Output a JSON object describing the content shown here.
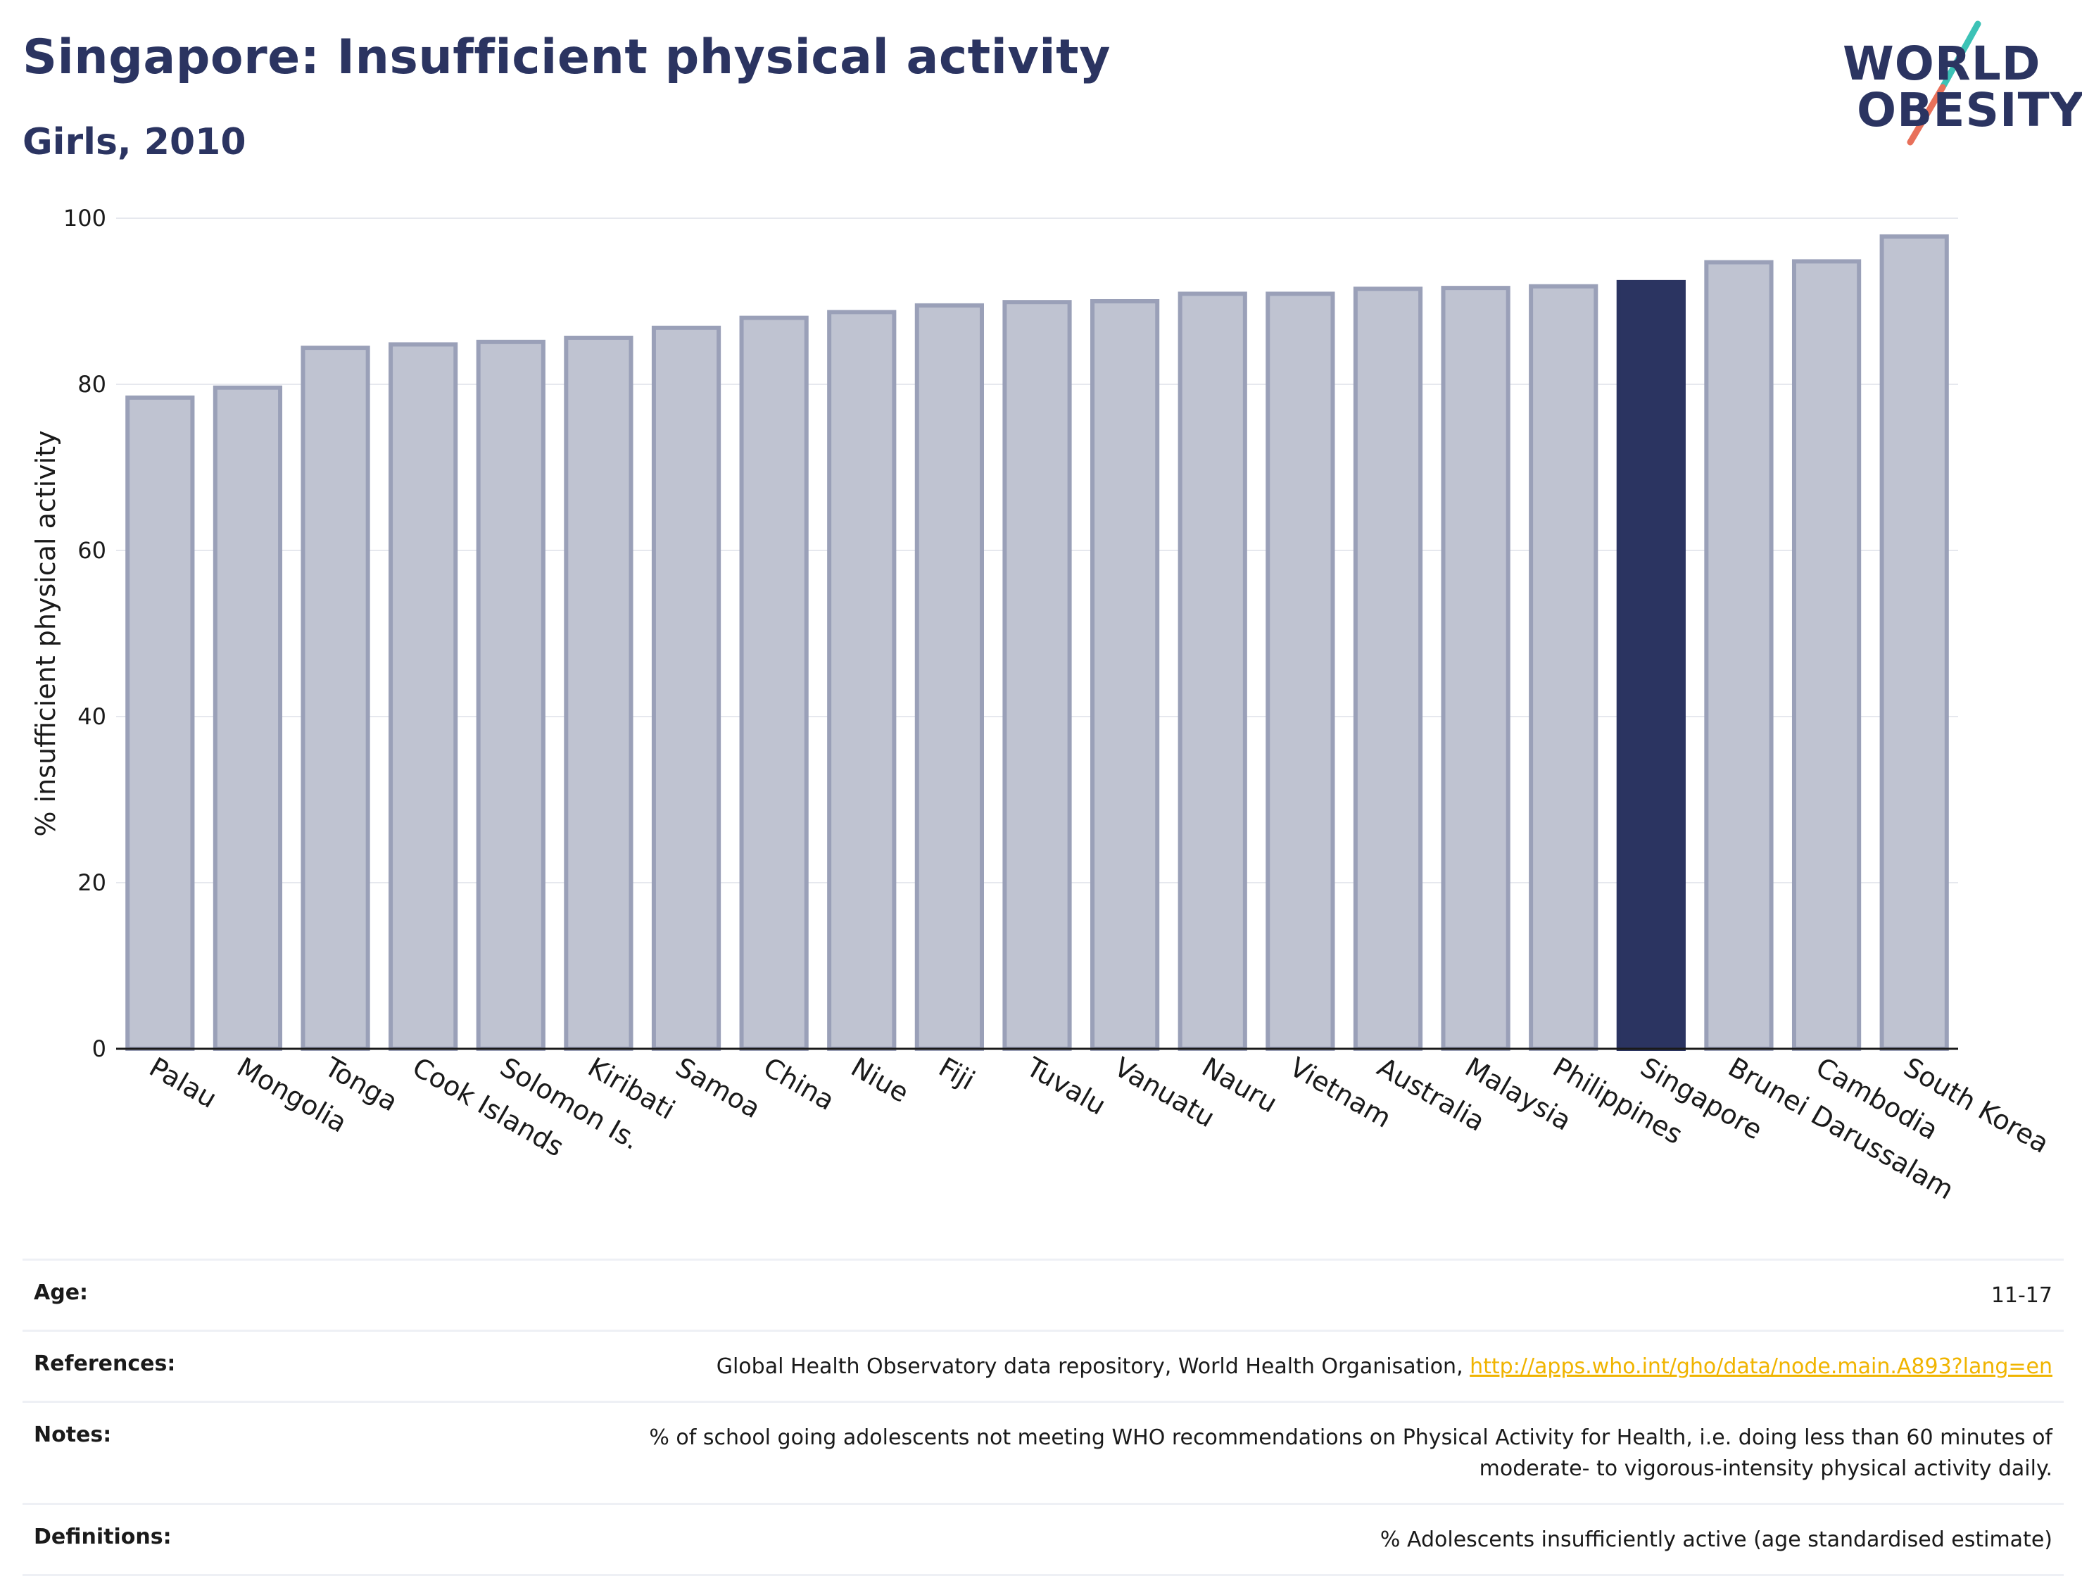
{
  "header": {
    "title": "Singapore: Insufficient physical activity",
    "subtitle": "Girls, 2010"
  },
  "logo": {
    "line1": "WORLD",
    "line2": "OBESITY",
    "colors": {
      "text": "#2b3461",
      "slash_top": "#3cc2b6",
      "slash_bottom": "#e8705a"
    }
  },
  "chart_data": {
    "type": "bar",
    "title": "Singapore: Insufficient physical activity",
    "subtitle": "Girls, 2010",
    "xlabel": "",
    "ylabel": "% insufficient physical activity",
    "ylim": [
      0,
      100
    ],
    "yticks": [
      0,
      20,
      40,
      60,
      80,
      100
    ],
    "grid": true,
    "legend": "none",
    "highlight": "Singapore",
    "colors": {
      "bar": "#bfc3d1",
      "bar_edge": "#9aa0b8",
      "highlight": "#2b3461",
      "grid": "#e6e8ee",
      "axis": "#1a1a1a"
    },
    "categories": [
      "Palau",
      "Mongolia",
      "Tonga",
      "Cook Islands",
      "Solomon Is.",
      "Kiribati",
      "Samoa",
      "China",
      "Niue",
      "Fiji",
      "Tuvalu",
      "Vanuatu",
      "Nauru",
      "Vietnam",
      "Australia",
      "Malaysia",
      "Philippines",
      "Singapore",
      "Brunei Darussalam",
      "Cambodia",
      "South Korea"
    ],
    "values": [
      78.4,
      79.6,
      84.4,
      84.8,
      85.1,
      85.6,
      86.8,
      88.0,
      88.7,
      89.5,
      89.9,
      90.0,
      90.9,
      90.9,
      91.5,
      91.6,
      91.8,
      92.3,
      94.7,
      94.8,
      97.8
    ]
  },
  "meta": {
    "age": {
      "label": "Age:",
      "value": "11-17"
    },
    "references": {
      "label": "References:",
      "text": "Global Health Observatory data repository, World Health Organisation, ",
      "link": "http://apps.who.int/gho/data/node.main.A893?lang=en"
    },
    "notes": {
      "label": "Notes:",
      "line1": "% of school going adolescents not meeting WHO recommendations on Physical Activity for Health, i.e. doing less than 60 minutes of",
      "line2": "moderate- to vigorous-intensity physical activity daily."
    },
    "definitions": {
      "label": "Definitions:",
      "value": "% Adolescents insufficiently active (age standardised estimate)"
    }
  }
}
